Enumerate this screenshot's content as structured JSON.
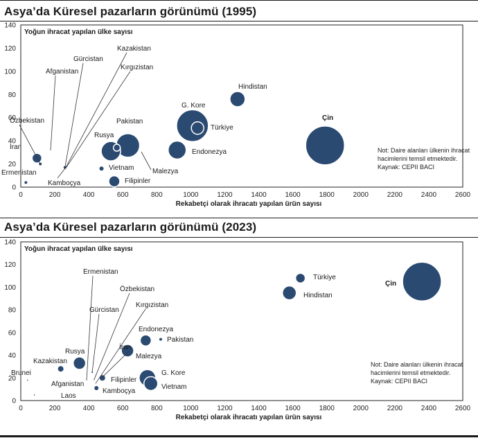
{
  "charts": [
    {
      "title": "Asya’da Küresel pazarların görünümü (1995)",
      "chart_data": {
        "type": "scatter",
        "ylabel": "Yoğun ihracat yapılan  ülke sayısı",
        "xlabel": "Rekabetçi olarak ihracatı yapılan ürün sayısı",
        "xlim": [
          0,
          2600
        ],
        "ylim": [
          0,
          140
        ],
        "xticks": [
          0,
          200,
          400,
          600,
          800,
          1000,
          1200,
          1400,
          1600,
          1800,
          2000,
          2200,
          2400,
          2600
        ],
        "yticks": [
          0,
          20,
          40,
          60,
          80,
          100,
          120,
          140
        ],
        "note": [
          "Not: Daire alanları ülkenin ihracat",
          "hacimlerini temsil etmektedir.",
          "Kaynak: CEPII BACI"
        ],
        "points": [
          {
            "name": "Ermenistan",
            "x": 30,
            "y": 4,
            "r": 2
          },
          {
            "name": "İran",
            "x": 95,
            "y": 25,
            "r": 7
          },
          {
            "name": "Özbekistan",
            "x": 115,
            "y": 20,
            "r": 2
          },
          {
            "name": "Afganistan",
            "x": 100,
            "y": 20,
            "r": 0
          },
          {
            "name": "Gürcistan",
            "x": 260,
            "y": 17,
            "r": 2
          },
          {
            "name": "Kazakistan",
            "x": 265,
            "y": 17,
            "r": 0
          },
          {
            "name": "Kırgızistan",
            "x": 268,
            "y": 17,
            "r": 0
          },
          {
            "name": "Kamboçya",
            "x": 265,
            "y": 17,
            "r": 0
          },
          {
            "name": "Vietnam",
            "x": 475,
            "y": 16,
            "r": 3
          },
          {
            "name": "Filipinler",
            "x": 550,
            "y": 5,
            "r": 8
          },
          {
            "name": "Rusya",
            "x": 530,
            "y": 31,
            "r": 14
          },
          {
            "name": "Pakistan",
            "x": 565,
            "y": 34,
            "r": 5
          },
          {
            "name": "Malezya",
            "x": 630,
            "y": 36,
            "r": 17
          },
          {
            "name": "Endonezya",
            "x": 920,
            "y": 32,
            "r": 13
          },
          {
            "name": "G. Kore",
            "x": 1010,
            "y": 53,
            "r": 23
          },
          {
            "name": "Türkiye",
            "x": 1040,
            "y": 51,
            "r": 9
          },
          {
            "name": "Hindistan",
            "x": 1275,
            "y": 76,
            "r": 11
          },
          {
            "name": "Çin",
            "x": 1790,
            "y": 36,
            "r": 28
          }
        ]
      }
    },
    {
      "title": "Asya’da Küresel pazarların görünümü (2023)",
      "chart_data": {
        "type": "scatter",
        "ylabel": "Yoğun ihracat yapılan  ülke sayısı",
        "xlabel": "Rekabetçi olarak ihracatı yapılan ürün sayısı",
        "xlim": [
          0,
          2600
        ],
        "ylim": [
          0,
          140
        ],
        "xticks": [
          0,
          200,
          400,
          600,
          800,
          1000,
          1200,
          1400,
          1600,
          1800,
          2000,
          2200,
          2400,
          2600
        ],
        "yticks": [
          0,
          20,
          40,
          60,
          80,
          100,
          120,
          140
        ],
        "note": [
          "Not: Daire alanları ülkenin ihracat",
          "hacimlerini temsil etmektedir.",
          "Kaynak: CEPII BACI"
        ],
        "points": [
          {
            "name": "Brunei",
            "x": 40,
            "y": 18,
            "r": 0.8
          },
          {
            "name": "Laos",
            "x": 80,
            "y": 5,
            "r": 0.8
          },
          {
            "name": "Kazakistan",
            "x": 235,
            "y": 28,
            "r": 4
          },
          {
            "name": "Afganistan",
            "x": 240,
            "y": 13,
            "r": 0
          },
          {
            "name": "Rusya",
            "x": 345,
            "y": 33,
            "r": 9
          },
          {
            "name": "Ermenistan",
            "x": 395,
            "y": 15,
            "r": 0
          },
          {
            "name": "Gürcistan",
            "x": 420,
            "y": 25,
            "r": 1
          },
          {
            "name": "Özbekistan",
            "x": 430,
            "y": 18,
            "r": 0
          },
          {
            "name": "Kırgızistan",
            "x": 440,
            "y": 15,
            "r": 0
          },
          {
            "name": "İran",
            "x": 475,
            "y": 20,
            "r": 0
          },
          {
            "name": "Kamboçya",
            "x": 445,
            "y": 11,
            "r": 3
          },
          {
            "name": "Filipinler",
            "x": 480,
            "y": 20,
            "r": 4
          },
          {
            "name": "Malezya",
            "x": 628,
            "y": 44,
            "r": 9
          },
          {
            "name": "Endonezya",
            "x": 735,
            "y": 53,
            "r": 8
          },
          {
            "name": "Pakistan",
            "x": 823,
            "y": 54,
            "r": 2
          },
          {
            "name": "G. Kore",
            "x": 745,
            "y": 20,
            "r": 12
          },
          {
            "name": "Vietnam",
            "x": 765,
            "y": 15,
            "r": 10
          },
          {
            "name": "Türkiye",
            "x": 1645,
            "y": 108,
            "r": 7
          },
          {
            "name": "Hindistan",
            "x": 1580,
            "y": 95,
            "r": 10
          },
          {
            "name": "Çin",
            "x": 2360,
            "y": 105,
            "r": 28
          }
        ]
      }
    }
  ]
}
